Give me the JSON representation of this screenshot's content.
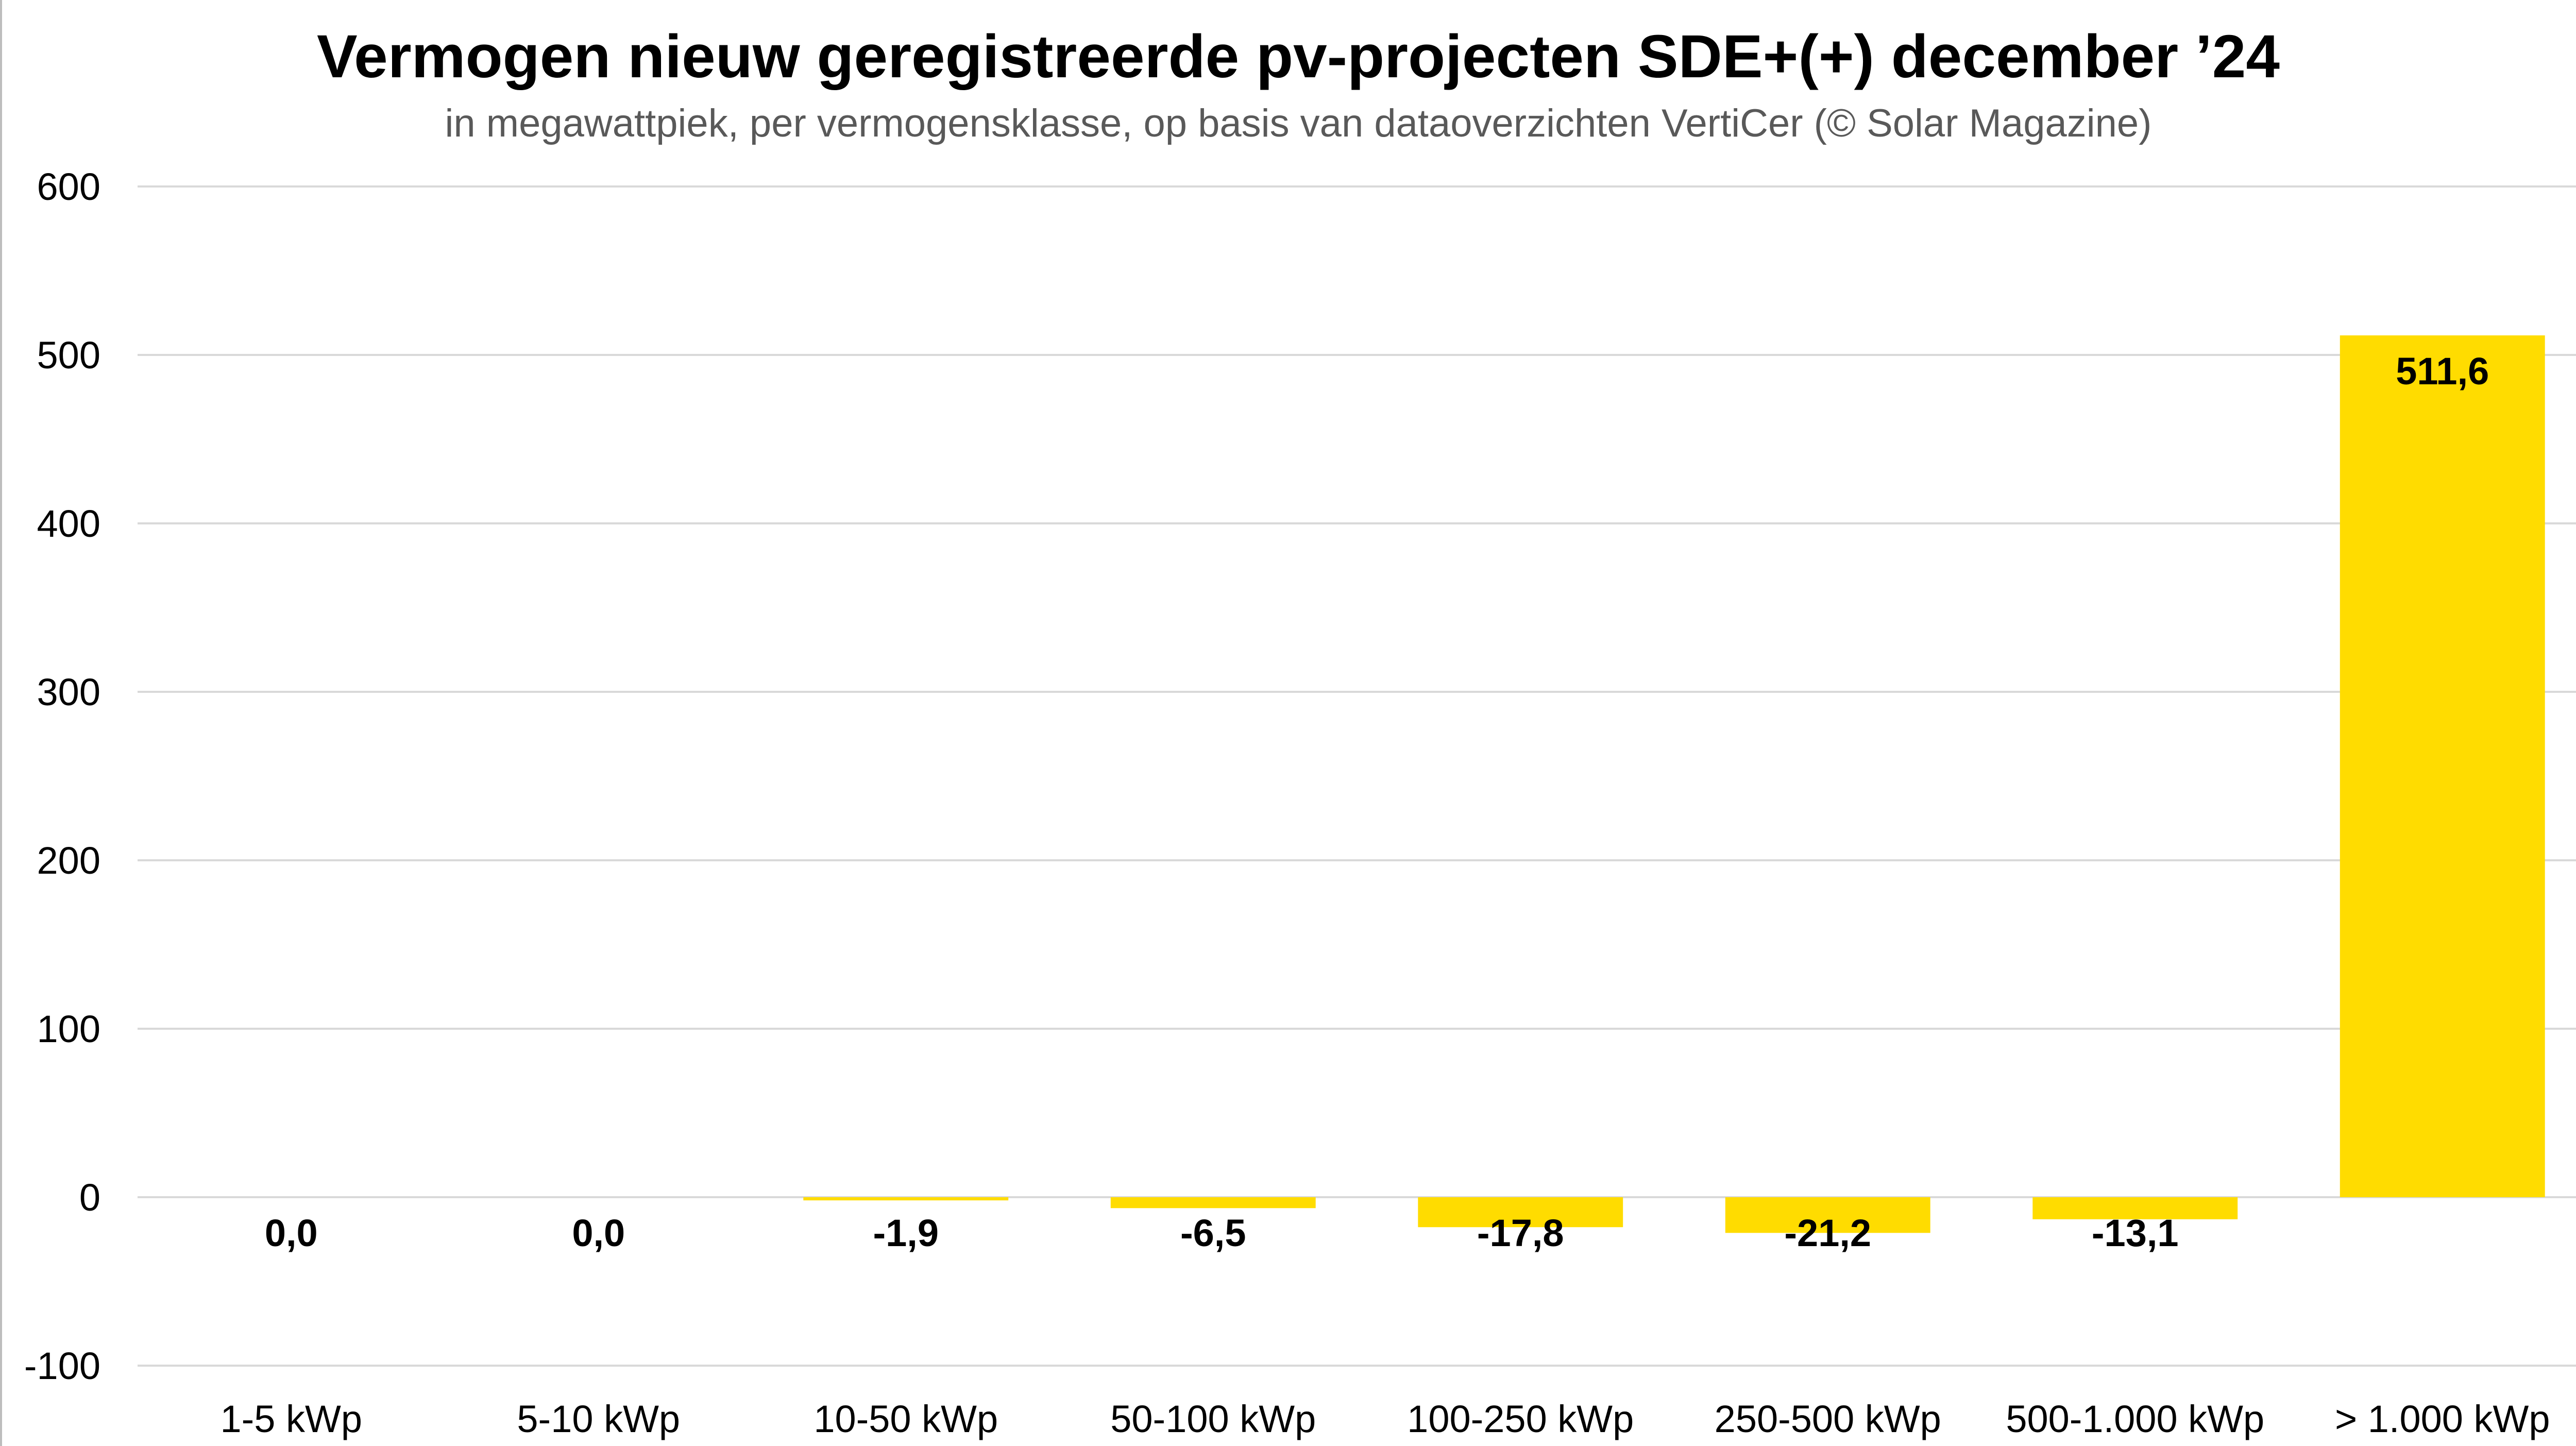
{
  "chart_data": {
    "type": "bar",
    "title": "Vermogen nieuw geregistreerde pv-projecten SDE+(+) december ’24",
    "subtitle": "in megawattpiek, per vermogensklasse, op basis van dataoverzichten VertiCer (© Solar Magazine)",
    "xlabel": "",
    "ylabel": "",
    "ylim": [
      -100,
      600
    ],
    "yticks": [
      600,
      500,
      400,
      300,
      200,
      100,
      0,
      -100
    ],
    "grid": true,
    "categories": [
      "1-5 kWp",
      "5-10 kWp",
      "10-50 kWp",
      "50-100 kWp",
      "100-250 kWp",
      "250-500 kWp",
      "500-1.000 kWp",
      "> 1.000 kWp"
    ],
    "values": [
      0.0,
      0.0,
      -1.9,
      -6.5,
      -17.8,
      -21.2,
      -13.1,
      511.6
    ],
    "data_labels": [
      "0,0",
      "0,0",
      "-1,9",
      "-6,5",
      "-17,8",
      "-21,2",
      "-13,1",
      "511,6"
    ],
    "bar_color": "#FFDC00",
    "grid_color": "#D9D9D9"
  }
}
